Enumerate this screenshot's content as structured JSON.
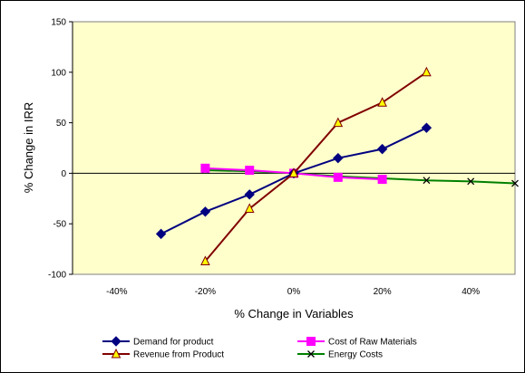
{
  "chart_data": {
    "type": "line",
    "title": "",
    "xlabel": "% Change in Variables",
    "ylabel": "% Change in IRR",
    "xlim": [
      -50,
      50
    ],
    "ylim": [
      -100,
      150
    ],
    "x_ticks": [
      -40,
      -20,
      0,
      20,
      40
    ],
    "x_tick_labels": [
      "-40%",
      "-20%",
      "0%",
      "20%",
      "40%"
    ],
    "y_ticks": [
      -100,
      -50,
      0,
      50,
      100,
      150
    ],
    "y_tick_labels": [
      "-100",
      "-50",
      "0",
      "50",
      "100",
      "150"
    ],
    "grid": false,
    "plot_background": "#ffffcc",
    "legend_position": "bottom",
    "series": [
      {
        "name": "Demand for product",
        "color": "#000080",
        "marker": "diamond",
        "marker_fill": "#000080",
        "x": [
          -30,
          -20,
          -10,
          0,
          10,
          20,
          30
        ],
        "y": [
          -60,
          -38,
          -21,
          0,
          15,
          24,
          45
        ]
      },
      {
        "name": "Cost of Raw Materials",
        "color": "#ff00ff",
        "marker": "square",
        "marker_fill": "#ff00ff",
        "x": [
          -20,
          -10,
          0,
          10,
          20
        ],
        "y": [
          5,
          3,
          0,
          -4,
          -6
        ]
      },
      {
        "name": "Revenue from Product",
        "color": "#800000",
        "marker": "triangle",
        "marker_fill": "#ffff00",
        "x": [
          -20,
          -10,
          0,
          10,
          20,
          30
        ],
        "y": [
          -87,
          -35,
          0,
          50,
          70,
          100
        ]
      },
      {
        "name": "Energy Costs",
        "color": "#008000",
        "marker": "x",
        "marker_fill": "#000000",
        "x": [
          -20,
          -10,
          0,
          10,
          20,
          30,
          40,
          50
        ],
        "y": [
          3,
          2,
          0,
          -3,
          -5,
          -7,
          -8,
          -10
        ]
      }
    ]
  }
}
